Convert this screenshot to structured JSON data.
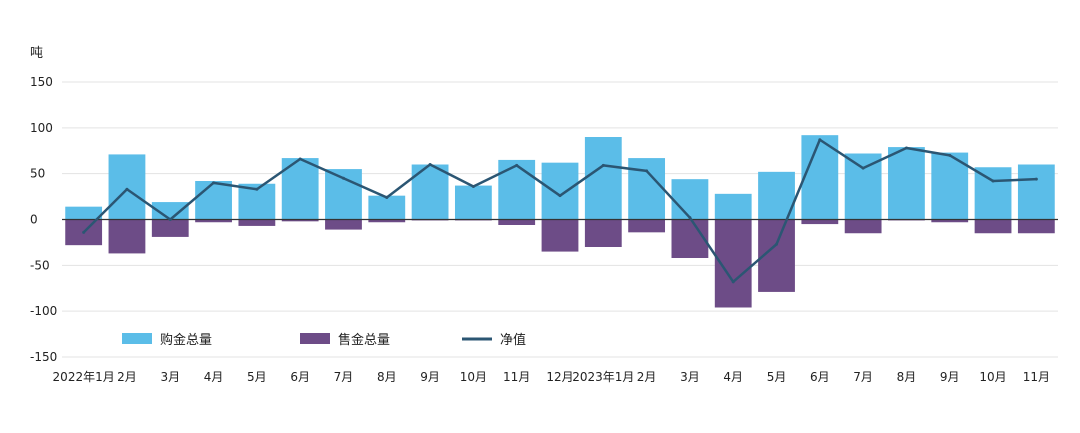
{
  "chart_data": {
    "type": "bar",
    "title": "",
    "ylabel": "吨",
    "ylim": [
      -150,
      150
    ],
    "yticks": [
      150,
      100,
      50,
      0,
      -50,
      -100,
      -150
    ],
    "grid": true,
    "legend_position": "bottom-left",
    "categories": [
      "2022年1月",
      "2月",
      "3月",
      "4月",
      "5月",
      "6月",
      "7月",
      "8月",
      "9月",
      "10月",
      "11月",
      "12月",
      "2023年1月",
      "2月",
      "3月",
      "4月",
      "5月",
      "6月",
      "7月",
      "8月",
      "9月",
      "10月",
      "11月"
    ],
    "series": [
      {
        "name": "购金总量",
        "type": "bar",
        "color": "#5bbde8",
        "values": [
          14,
          71,
          19,
          42,
          39,
          67,
          55,
          26,
          60,
          37,
          65,
          62,
          90,
          67,
          44,
          28,
          52,
          92,
          72,
          79,
          73,
          57,
          60
        ]
      },
      {
        "name": "售金总量",
        "type": "bar",
        "color": "#6d4c87",
        "values": [
          -28,
          -37,
          -19,
          -3,
          -7,
          -2,
          -11,
          -3,
          -1,
          -1,
          -6,
          -35,
          -30,
          -14,
          -42,
          -96,
          -79,
          -5,
          -15,
          -1,
          -3,
          -15,
          -15
        ]
      },
      {
        "name": "净值",
        "type": "line",
        "color": "#2b5673",
        "values": [
          -14,
          33,
          0,
          40,
          33,
          66,
          45,
          24,
          60,
          36,
          59,
          26,
          59,
          53,
          2,
          -68,
          -27,
          87,
          56,
          78,
          70,
          42,
          44
        ]
      }
    ]
  }
}
